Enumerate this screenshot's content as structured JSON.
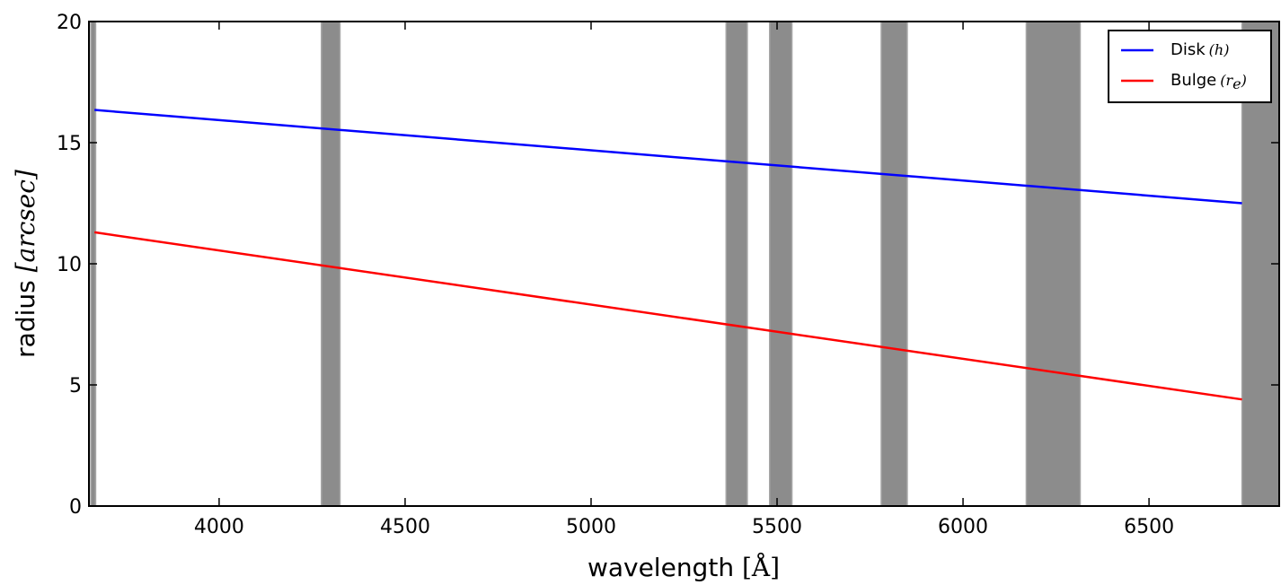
{
  "chart_data": {
    "type": "line",
    "xlabel": "wavelength",
    "xlabel_unit": "[Å]",
    "ylabel": "radius",
    "ylabel_unit": "[arcsec]",
    "xlim": [
      3650,
      6850
    ],
    "ylim": [
      0,
      20
    ],
    "xticks": [
      4000,
      4500,
      5000,
      5500,
      6000,
      6500
    ],
    "yticks": [
      0,
      5,
      10,
      15,
      20
    ],
    "grid": false,
    "legend_position": "top-right",
    "series": [
      {
        "name": "Disk",
        "name_math": "(h)",
        "color": "#0000ff",
        "x": [
          3665,
          6750
        ],
        "y": [
          16.35,
          12.5
        ]
      },
      {
        "name": "Bulge",
        "name_math": "(r",
        "name_math_sub": "e",
        "name_math_close": ")",
        "color": "#ff0000",
        "x": [
          3665,
          6750
        ],
        "y": [
          11.3,
          4.4
        ]
      }
    ],
    "masked_regions": [
      [
        3655,
        3668
      ],
      [
        4275,
        4325
      ],
      [
        5363,
        5420
      ],
      [
        5480,
        5540
      ],
      [
        5780,
        5850
      ],
      [
        6170,
        6315
      ],
      [
        6750,
        6855
      ]
    ],
    "mask_color": "#8c8c8c"
  }
}
